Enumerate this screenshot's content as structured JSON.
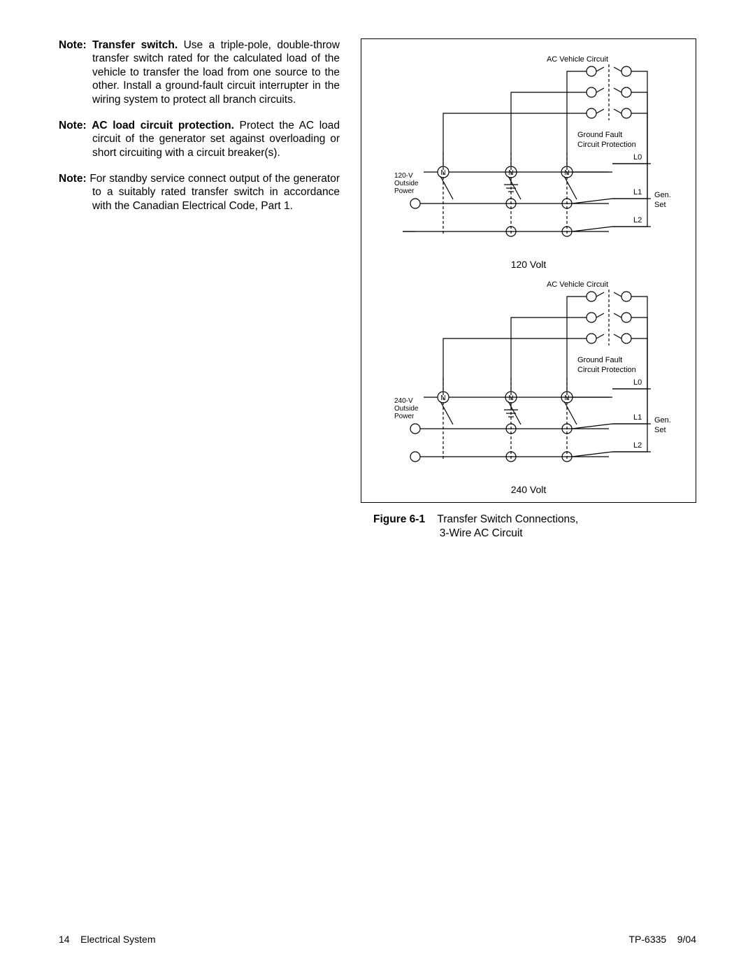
{
  "notes": [
    {
      "label": "Note:",
      "title": "Transfer switch.",
      "body": "Use a triple-pole, double-throw transfer switch rated for the calculated load of the vehicle to transfer the load from one source to the other.  Install a ground-fault circuit interrupter in the wiring system to protect all branch circuits."
    },
    {
      "label": "Note:",
      "title": "AC load circuit protection.",
      "body": "Protect the AC load circuit of the generator set against overloading or short circuiting with a circuit breaker(s)."
    },
    {
      "label": "Note:",
      "title": "",
      "body": "For standby service connect output of the generator to a suitably rated transfer switch in accordance with the Canadian Electrical Code, Part 1."
    }
  ],
  "diagrams": [
    {
      "caption": "120 Volt",
      "source_label": "120-V\nOutside\nPower",
      "top_label": "AC Vehicle Circuit",
      "gf_label_1": "Ground Fault",
      "gf_label_2": "Circuit Protection",
      "lines": [
        "L0",
        "L1",
        "L2"
      ],
      "gen_label_1": "Gen.",
      "gen_label_2": "Set",
      "n_label": "N"
    },
    {
      "caption": "240 Volt",
      "source_label": "240-V\nOutside\nPower",
      "top_label": "AC Vehicle Circuit",
      "gf_label_1": "Ground Fault",
      "gf_label_2": "Circuit Protection",
      "lines": [
        "L0",
        "L1",
        "L2"
      ],
      "gen_label_1": "Gen.",
      "gen_label_2": "Set",
      "n_label": "N"
    }
  ],
  "figure": {
    "num": "Figure 6-1",
    "title_l1": "Transfer Switch Connections,",
    "title_l2": "3‑Wire AC Circuit"
  },
  "footer": {
    "left_page": "14",
    "left_text": "Electrical System",
    "right_doc": "TP-6335",
    "right_date": "9/04"
  },
  "style": {
    "stroke": "#000000",
    "stroke_width": 1.2,
    "font_small": 11,
    "font_tiny": 10
  }
}
